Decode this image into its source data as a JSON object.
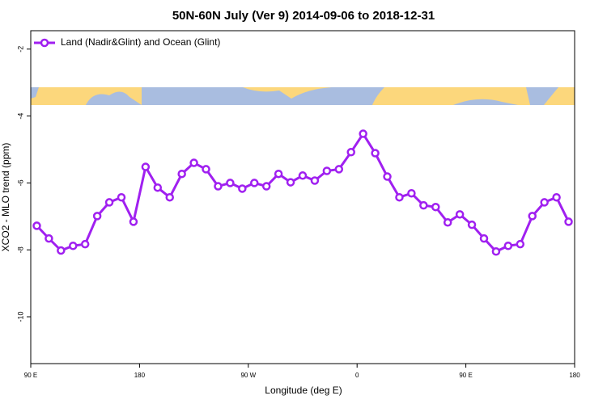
{
  "chart_data": {
    "type": "line",
    "title": "50N-60N July (Ver 9)   2014-09-06 to 2018-12-31",
    "x_label": "Longitude (deg E)",
    "y_label": "XCO2 - MLO trend (ppm)",
    "xlim": [
      -270,
      180
    ],
    "xticks": [
      {
        "value": -270,
        "label": "90 E"
      },
      {
        "value": -180,
        "label": "180"
      },
      {
        "value": -90,
        "label": "90 W"
      },
      0,
      {
        "value": 90,
        "label": "90 E"
      },
      180
    ],
    "ylim": [
      -11.4,
      -1.45
    ],
    "yticks": [
      -2,
      -4,
      -6,
      -8,
      -10
    ],
    "legend": "top-left",
    "x": [
      -265,
      -255,
      -245,
      -235,
      -225,
      -215,
      -205,
      -195,
      -185,
      -175,
      -165,
      -155,
      -145,
      -135,
      -125,
      -115,
      -105,
      -95,
      -85,
      -75,
      -65,
      -55,
      -45,
      -35,
      -25,
      -15,
      -5,
      5,
      15,
      25,
      35,
      45,
      55,
      65,
      75,
      85,
      95,
      105,
      115,
      125,
      135,
      145,
      155,
      165,
      175
    ],
    "series": [
      {
        "name": "Land (Nadir&Glint) and Ocean (Glint)",
        "color": "#a020f0",
        "values": [
          -7.28,
          -7.66,
          -8.02,
          -7.88,
          -7.83,
          -6.99,
          -6.58,
          -6.43,
          -7.16,
          -5.52,
          -6.14,
          -6.43,
          -5.73,
          -5.4,
          -5.59,
          -6.1,
          -6.0,
          -6.17,
          -6.0,
          -6.1,
          -5.73,
          -5.98,
          -5.78,
          -5.93,
          -5.64,
          -5.59,
          -5.08,
          -4.53,
          -5.11,
          -5.81,
          -6.43,
          -6.31,
          -6.67,
          -6.72,
          -7.18,
          -6.94,
          -7.25,
          -7.66,
          -8.05,
          -7.88,
          -7.83,
          -6.99,
          -6.58,
          -6.43,
          -7.16
        ]
      }
    ]
  }
}
